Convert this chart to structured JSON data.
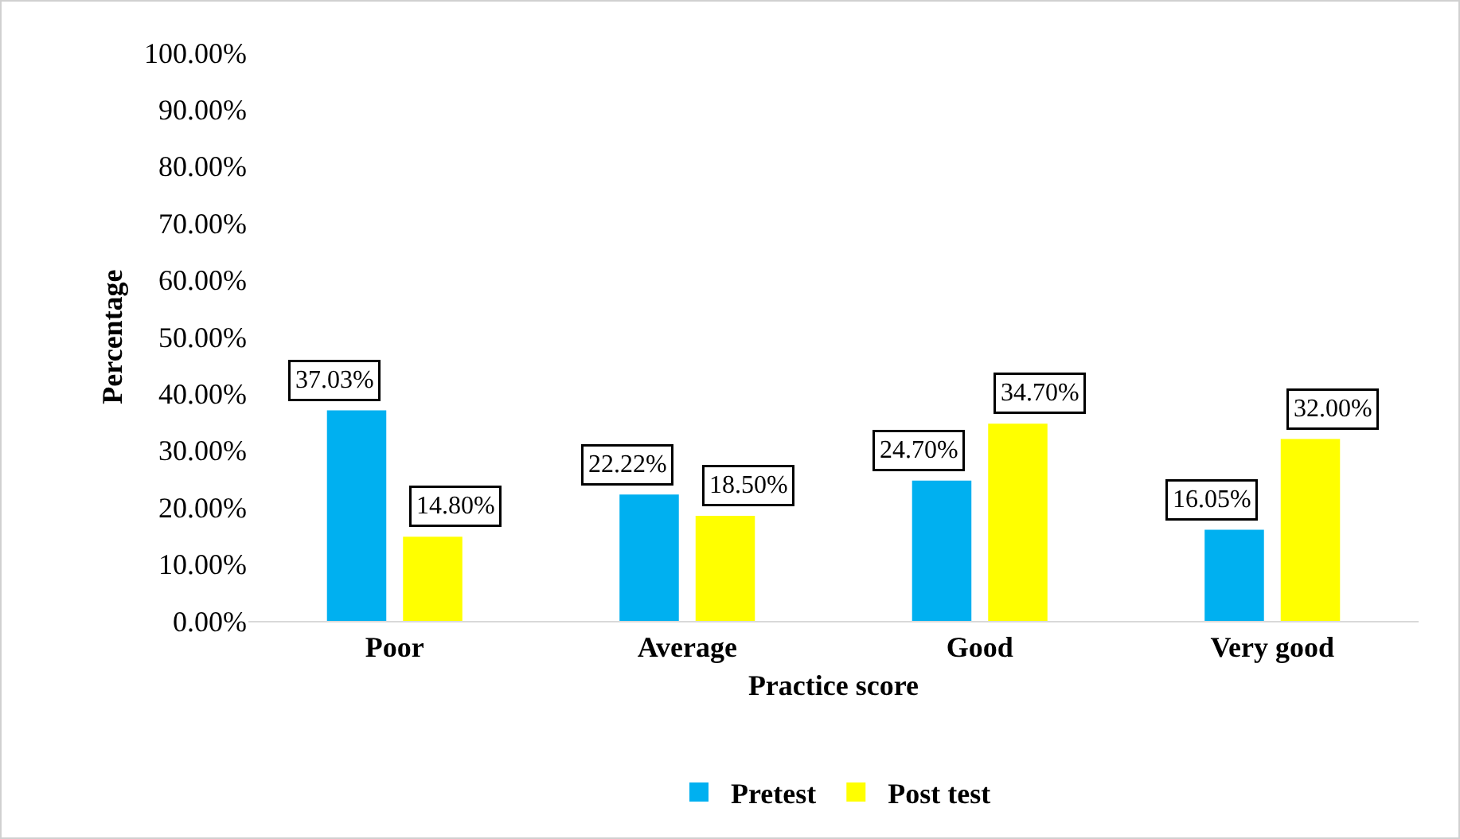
{
  "chart_data": {
    "type": "bar",
    "xlabel": "Practice score",
    "ylabel": "Percentage",
    "categories": [
      "Poor",
      "Average",
      "Good",
      "Very good"
    ],
    "series": [
      {
        "name": "Pretest",
        "color": "#00b0f0",
        "values": [
          37.03,
          22.22,
          24.7,
          16.05
        ],
        "value_labels": [
          "37.03%",
          "22.22%",
          "24.70%",
          "16.05%"
        ]
      },
      {
        "name": "Post test",
        "color": "#ffff00",
        "values": [
          14.8,
          18.5,
          34.7,
          32.0
        ],
        "value_labels": [
          "14.80%",
          "18.50%",
          "34.70%",
          "32.00%"
        ]
      }
    ],
    "ylim": [
      0,
      100
    ],
    "yticks": [
      {
        "value": 0,
        "label": "0.00%"
      },
      {
        "value": 10,
        "label": "10.00%"
      },
      {
        "value": 20,
        "label": "20.00%"
      },
      {
        "value": 30,
        "label": "30.00%"
      },
      {
        "value": 40,
        "label": "40.00%"
      },
      {
        "value": 50,
        "label": "50.00%"
      },
      {
        "value": 60,
        "label": "60.00%"
      },
      {
        "value": 70,
        "label": "70.00%"
      },
      {
        "value": 80,
        "label": "80.00%"
      },
      {
        "value": 90,
        "label": "90.00%"
      },
      {
        "value": 100,
        "label": "100.00%"
      }
    ],
    "grid": false,
    "legend": "bottom"
  }
}
